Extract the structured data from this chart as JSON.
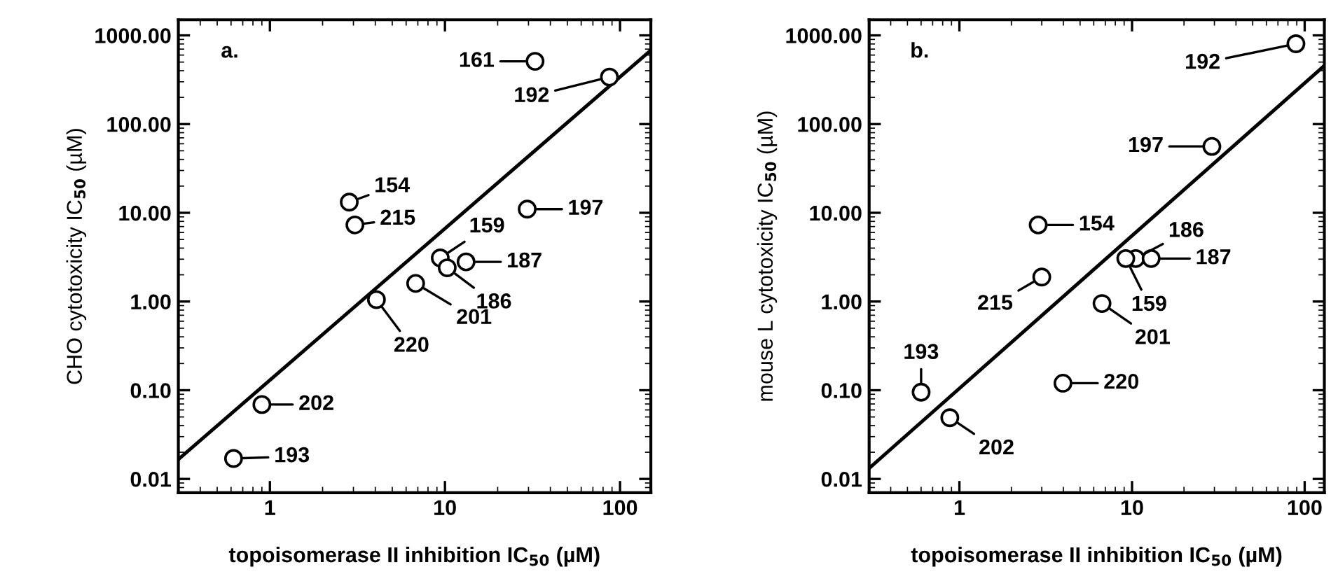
{
  "chart_data": [
    {
      "type": "scatter",
      "xlabel": "topoisomerase II inhibition IC$_{50}$ (µM)",
      "ylabel": "CHO cytotoxicity IC$_{50}$ (µM)",
      "log": "xy",
      "grid": false,
      "legend": false,
      "xlim": [
        0.3,
        150
      ],
      "ylim": [
        0.007,
        1500
      ],
      "xticks": [
        1,
        10,
        100
      ],
      "yticks": [
        {
          "value": 0.01,
          "label": "0.01"
        },
        {
          "value": 0.1,
          "label": "0.10"
        },
        {
          "value": 1,
          "label": "1.00"
        },
        {
          "value": 10,
          "label": "10.00"
        },
        {
          "value": 100,
          "label": "100.00"
        },
        {
          "value": 1000,
          "label": "1000.00"
        }
      ],
      "series": [
        {
          "type": "scatter",
          "color": "#000000",
          "marker": "circle",
          "x": [
            32.7,
            87,
            2.84,
            3.06,
            29.5,
            9.4,
            10.3,
            13.2,
            6.8,
            4.06,
            0.9,
            0.62
          ],
          "values": [
            510,
            339,
            13.2,
            7.3,
            11,
            3.1,
            2.4,
            2.8,
            1.6,
            1.05,
            0.069,
            0.017
          ]
        },
        {
          "type": "line",
          "color": "#000000",
          "marker": "none",
          "line_style": "solid",
          "x": [
            0.3,
            150
          ],
          "values": [
            0.0166,
            680
          ]
        }
      ],
      "annotations": [
        "a.",
        {
          "text": "161",
          "x": 32.7,
          "y": 510
        },
        {
          "text": "192",
          "x": 87,
          "y": 339
        },
        {
          "text": "154",
          "x": 2.84,
          "y": 13.2
        },
        {
          "text": "215",
          "x": 3.06,
          "y": 7.3
        },
        {
          "text": "197",
          "x": 29.5,
          "y": 11
        },
        {
          "text": "159",
          "x": 9.4,
          "y": 3.1
        },
        {
          "text": "186",
          "x": 10.3,
          "y": 2.4
        },
        {
          "text": "187",
          "x": 13.2,
          "y": 2.8
        },
        {
          "text": "201",
          "x": 6.8,
          "y": 1.6
        },
        {
          "text": "220",
          "x": 4.06,
          "y": 1.05
        },
        {
          "text": "202",
          "x": 0.9,
          "y": 0.069
        },
        {
          "text": "193",
          "x": 0.62,
          "y": 0.017
        }
      ]
    },
    {
      "type": "scatter",
      "xlabel": "topoisomerase II inhibition IC$_{50}$ (µM)",
      "ylabel": "mouse L cytotoxicity IC$_{50}$ (µM)",
      "log": "xy",
      "grid": false,
      "legend": false,
      "xlim": [
        0.3,
        130
      ],
      "ylim": [
        0.007,
        1500
      ],
      "xticks": [
        1,
        10,
        100
      ],
      "yticks": [
        {
          "value": 0.01,
          "label": "0.01"
        },
        {
          "value": 0.1,
          "label": "0.10"
        },
        {
          "value": 1,
          "label": "1.00"
        },
        {
          "value": 10,
          "label": "10.00"
        },
        {
          "value": 100,
          "label": "100.00"
        },
        {
          "value": 1000,
          "label": "1000.00"
        }
      ],
      "series": [
        {
          "type": "scatter",
          "color": "#000000",
          "marker": "circle",
          "x": [
            89,
            29,
            2.86,
            10.5,
            9.2,
            12.9,
            3.0,
            6.7,
            3.98,
            0.6,
            0.88
          ],
          "values": [
            805,
            56,
            7.3,
            3.05,
            3.05,
            3.05,
            1.89,
            0.95,
            0.12,
            0.095,
            0.049
          ]
        },
        {
          "type": "line",
          "color": "#000000",
          "marker": "none",
          "line_style": "solid",
          "x": [
            0.3,
            130
          ],
          "values": [
            0.0132,
            456
          ]
        }
      ],
      "annotations": [
        "b.",
        {
          "text": "192",
          "x": 89,
          "y": 805
        },
        {
          "text": "197",
          "x": 29,
          "y": 56
        },
        {
          "text": "154",
          "x": 2.86,
          "y": 7.3
        },
        {
          "text": "186",
          "x": 10.5,
          "y": 3.05
        },
        {
          "text": "159",
          "x": 9.2,
          "y": 3.05
        },
        {
          "text": "187",
          "x": 12.9,
          "y": 3.05
        },
        {
          "text": "215",
          "x": 3.0,
          "y": 1.89
        },
        {
          "text": "201",
          "x": 6.7,
          "y": 0.95
        },
        {
          "text": "220",
          "x": 3.98,
          "y": 0.12
        },
        {
          "text": "193",
          "x": 0.6,
          "y": 0.095
        },
        {
          "text": "202",
          "x": 0.88,
          "y": 0.049
        }
      ]
    }
  ]
}
